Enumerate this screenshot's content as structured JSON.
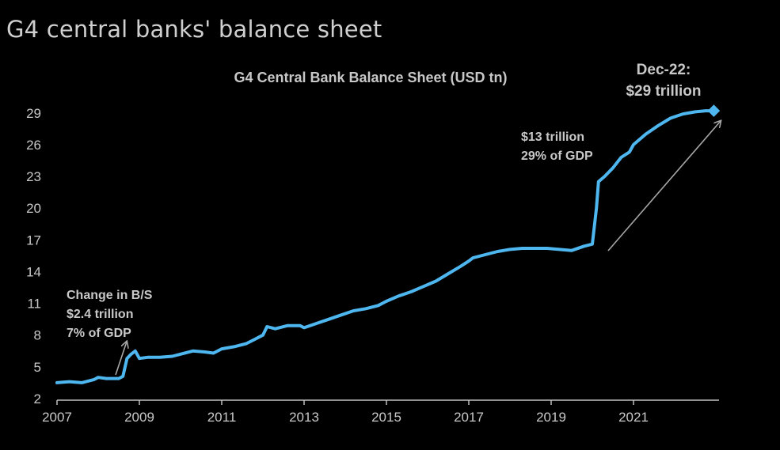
{
  "page": {
    "title": "G4 central banks' balance sheet"
  },
  "colors": {
    "background": "#000000",
    "series": "#4fb7ef",
    "text": "#c8c8c8",
    "arrow": "#a6a6a6",
    "axis": "#bfbfbf"
  },
  "chart_data": {
    "type": "line",
    "title": "G4 Central Bank Balance Sheet (USD tn)",
    "xlabel": "",
    "ylabel": "",
    "xlim": [
      2007,
      2023
    ],
    "ylim": [
      2,
      31
    ],
    "x_ticks": [
      2007,
      2009,
      2011,
      2013,
      2015,
      2017,
      2019,
      2021
    ],
    "x_tick_labels": [
      "2007",
      "2009",
      "2011",
      "2013",
      "2015",
      "2017",
      "2019",
      "2021"
    ],
    "y_ticks": [
      2,
      5,
      8,
      11,
      14,
      17,
      20,
      23,
      26,
      29
    ],
    "y_tick_labels": [
      "2",
      "5",
      "8",
      "11",
      "14",
      "17",
      "20",
      "23",
      "26",
      "29"
    ],
    "grid": false,
    "legend": "none",
    "series": [
      {
        "x": [
          2007.0,
          2007.3,
          2007.6,
          2007.9,
          2008.0,
          2008.2,
          2008.5,
          2008.6,
          2008.7,
          2008.8,
          2008.9,
          2009.0,
          2009.2,
          2009.5,
          2009.8,
          2010.0,
          2010.3,
          2010.6,
          2010.8,
          2011.0,
          2011.3,
          2011.6,
          2011.8,
          2012.0,
          2012.1,
          2012.3,
          2012.6,
          2012.9,
          2013.0,
          2013.3,
          2013.6,
          2013.9,
          2014.2,
          2014.5,
          2014.8,
          2015.0,
          2015.3,
          2015.6,
          2015.9,
          2016.2,
          2016.5,
          2016.8,
          2017.0,
          2017.1,
          2017.4,
          2017.7,
          2018.0,
          2018.3,
          2018.6,
          2018.9,
          2019.2,
          2019.5,
          2019.8,
          2020.0,
          2020.1,
          2020.15,
          2020.3,
          2020.5,
          2020.7,
          2020.9,
          2021.0,
          2021.3,
          2021.6,
          2021.9,
          2022.2,
          2022.5,
          2022.75,
          2022.95
        ],
        "y": [
          3.5,
          3.6,
          3.5,
          3.8,
          4.0,
          3.9,
          3.9,
          4.1,
          5.8,
          6.2,
          6.5,
          5.8,
          5.9,
          5.9,
          6.0,
          6.2,
          6.5,
          6.4,
          6.3,
          6.7,
          6.9,
          7.2,
          7.6,
          8.0,
          8.8,
          8.6,
          8.9,
          8.9,
          8.7,
          9.1,
          9.5,
          9.9,
          10.3,
          10.5,
          10.8,
          11.2,
          11.7,
          12.1,
          12.6,
          13.1,
          13.8,
          14.5,
          15.0,
          15.3,
          15.6,
          15.9,
          16.1,
          16.2,
          16.2,
          16.2,
          16.1,
          16.0,
          16.4,
          16.6,
          20.0,
          22.5,
          23.0,
          23.8,
          24.8,
          25.3,
          26.0,
          27.0,
          27.8,
          28.5,
          28.9,
          29.1,
          29.2,
          29.2
        ]
      }
    ],
    "annotations": {
      "gfc": [
        "Change in B/S",
        "$2.4 trillion",
        "7% of GDP"
      ],
      "covid": [
        "$13 trillion",
        "29% of GDP"
      ],
      "endpoint": [
        "Dec-22:",
        "$29 trillion"
      ]
    }
  }
}
